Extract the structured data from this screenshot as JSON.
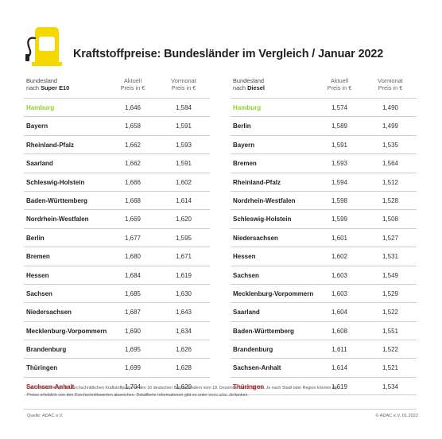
{
  "header": {
    "title": "Kraftstoffpreise: Bundesländer im Vergleich / Januar 2022",
    "icon": "fuel-pump-icon",
    "accent_color": "#f5d800"
  },
  "columns": {
    "state_line1": "Bundesland",
    "state_prefix": "nach",
    "current_line1": "Aktuell",
    "current_line2": "Preis in €",
    "previous_line1": "Vormonat",
    "previous_line2": "Preis in €"
  },
  "tables": [
    {
      "fuel": "Super E10",
      "rows": [
        {
          "state": "Hamburg",
          "current": "1,646",
          "previous": "1,584",
          "highlight": "best"
        },
        {
          "state": "Bayern",
          "current": "1,658",
          "previous": "1,591"
        },
        {
          "state": "Rheinland-Pfalz",
          "current": "1,662",
          "previous": "1,593"
        },
        {
          "state": "Saarland",
          "current": "1,662",
          "previous": "1,591"
        },
        {
          "state": "Schleswig-Holstein",
          "current": "1,666",
          "previous": "1,602"
        },
        {
          "state": "Baden-Württemberg",
          "current": "1,668",
          "previous": "1,614"
        },
        {
          "state": "Nordrhein-Westfalen",
          "current": "1,669",
          "previous": "1,620"
        },
        {
          "state": "Berlin",
          "current": "1,677",
          "previous": "1,595"
        },
        {
          "state": "Bremen",
          "current": "1,680",
          "previous": "1,671"
        },
        {
          "state": "Hessen",
          "current": "1,684",
          "previous": "1,619"
        },
        {
          "state": "Sachsen",
          "current": "1,685",
          "previous": "1,630"
        },
        {
          "state": "Niedersachsen",
          "current": "1,687",
          "previous": "1,643"
        },
        {
          "state": "Mecklenburg-Vorpommern",
          "current": "1,690",
          "previous": "1,634"
        },
        {
          "state": "Brandenburg",
          "current": "1,695",
          "previous": "1,626"
        },
        {
          "state": "Thüringen",
          "current": "1,699",
          "previous": "1,628"
        },
        {
          "state": "Sachsen-Anhalt",
          "current": "1,704",
          "previous": "1,620",
          "highlight": "worst"
        }
      ]
    },
    {
      "fuel": "Diesel",
      "rows": [
        {
          "state": "Hamburg",
          "current": "1,574",
          "previous": "1,490",
          "highlight": "best"
        },
        {
          "state": "Berlin",
          "current": "1,589",
          "previous": "1,499"
        },
        {
          "state": "Bayern",
          "current": "1,591",
          "previous": "1,535"
        },
        {
          "state": "Bremen",
          "current": "1,593",
          "previous": "1,564"
        },
        {
          "state": "Rheinland-Pfalz",
          "current": "1,594",
          "previous": "1,512"
        },
        {
          "state": "Nordrhein-Westfalen",
          "current": "1,598",
          "previous": "1,528"
        },
        {
          "state": "Schleswig-Holstein",
          "current": "1,599",
          "previous": "1,508"
        },
        {
          "state": "Niedersachsen",
          "current": "1,601",
          "previous": "1,527"
        },
        {
          "state": "Hessen",
          "current": "1,602",
          "previous": "1,531"
        },
        {
          "state": "Sachsen",
          "current": "1,603",
          "previous": "1,549"
        },
        {
          "state": "Mecklenburg-Vorpommern",
          "current": "1,603",
          "previous": "1,529"
        },
        {
          "state": "Saarland",
          "current": "1,604",
          "previous": "1,522"
        },
        {
          "state": "Baden-Württemberg",
          "current": "1,608",
          "previous": "1,551"
        },
        {
          "state": "Brandenburg",
          "current": "1,611",
          "previous": "1,522"
        },
        {
          "state": "Sachsen-Anhalt",
          "current": "1,614",
          "previous": "1,521"
        },
        {
          "state": "Thüringen",
          "current": "1,619",
          "previous": "1,534",
          "highlight": "worst"
        }
      ]
    }
  ],
  "footnote_line1": "Die Übersicht zeigt die durchschnittlichen Kraftstoffpreise in den 16 deutschen Bundesländern vom 18. Dezember 2022, 11 Uhr. Je nach Stadt oder Region können die",
  "footnote_line2": "Preise erheblich von den Durchschnittswerten abweichen. Detaillierte Informationen gibt es unter www.adac.de/tanken.",
  "source": "Quelle: ADAC e.V.",
  "copyright": "© ADAC e.V. 01.2022"
}
